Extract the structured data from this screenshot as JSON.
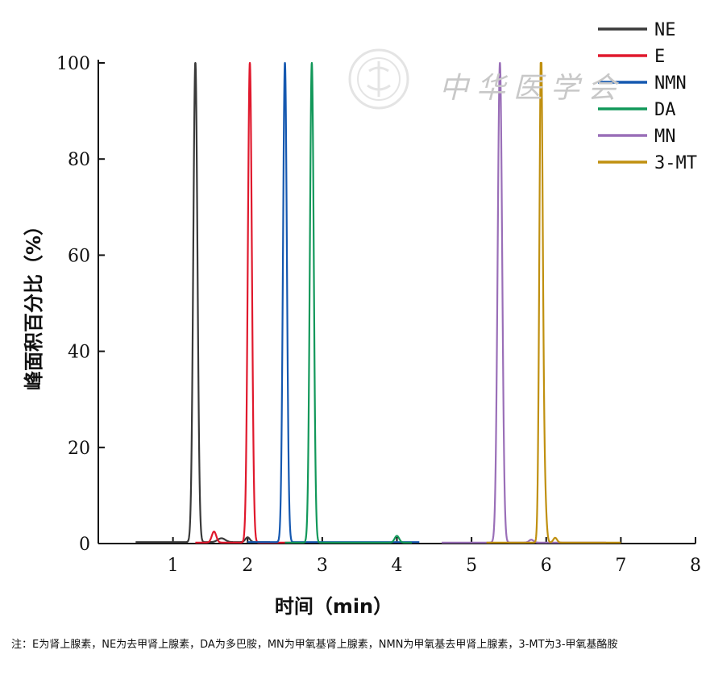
{
  "chart_data": {
    "type": "line",
    "title": "",
    "xlabel": "时间（min）",
    "ylabel": "峰面积百分比（%）",
    "xlim": [
      0,
      8
    ],
    "ylim": [
      0,
      100
    ],
    "xticks": [
      "1",
      "2",
      "3",
      "4",
      "5",
      "6",
      "7",
      "8"
    ],
    "yticks": [
      "0",
      "20",
      "40",
      "60",
      "80",
      "100"
    ],
    "grid": false,
    "legend_position": "top-right",
    "series": [
      {
        "name": "NE",
        "color": "#3a3a3a",
        "peaks": [
          {
            "x": 1.3,
            "y": 100,
            "w": 0.028
          },
          {
            "x": 1.65,
            "y": 0.8,
            "w": 0.05
          },
          {
            "x": 2.0,
            "y": 1.0,
            "w": 0.03
          }
        ],
        "baseline_range": [
          0.5,
          2.3
        ],
        "baseline": 0.3
      },
      {
        "name": "E",
        "color": "#e0192d",
        "peaks": [
          {
            "x": 2.03,
            "y": 100,
            "w": 0.027
          },
          {
            "x": 1.55,
            "y": 2.3,
            "w": 0.03
          }
        ],
        "baseline_range": [
          1.3,
          2.6
        ],
        "baseline": 0.2
      },
      {
        "name": "NMN",
        "color": "#1558b0",
        "peaks": [
          {
            "x": 2.5,
            "y": 100,
            "w": 0.026
          },
          {
            "x": 2.5,
            "y": 0,
            "w": 0.02
          }
        ],
        "baseline_range": [
          2.0,
          4.3
        ],
        "baseline": 0.3
      },
      {
        "name": "DA",
        "color": "#12985a",
        "peaks": [
          {
            "x": 2.86,
            "y": 100,
            "w": 0.026
          },
          {
            "x": 4.0,
            "y": 1.4,
            "w": 0.03
          }
        ],
        "baseline_range": [
          2.5,
          4.2
        ],
        "baseline": 0.2
      },
      {
        "name": "MN",
        "color": "#9a6fb8",
        "peaks": [
          {
            "x": 5.38,
            "y": 100,
            "w": 0.03
          },
          {
            "x": 5.8,
            "y": 0.6,
            "w": 0.03
          }
        ],
        "baseline_range": [
          4.6,
          6.8
        ],
        "baseline": 0.2
      },
      {
        "name": "3-MT",
        "color": "#c09010",
        "peaks": [
          {
            "x": 5.93,
            "y": 100,
            "w": 0.022
          },
          {
            "x": 5.97,
            "y": 13.5,
            "w": 0.025
          },
          {
            "x": 6.12,
            "y": 1.0,
            "w": 0.025
          }
        ],
        "baseline_range": [
          5.2,
          7.0
        ],
        "baseline": 0.2
      }
    ],
    "annotation": "注：E为肾上腺素，NE为去甲肾上腺素，DA为多巴胺，MN为甲氧基肾上腺素，NMN为甲氧基去甲肾上腺素，3-MT为3-甲氧基酪胺"
  },
  "watermark": {
    "text": "中华医学会"
  }
}
